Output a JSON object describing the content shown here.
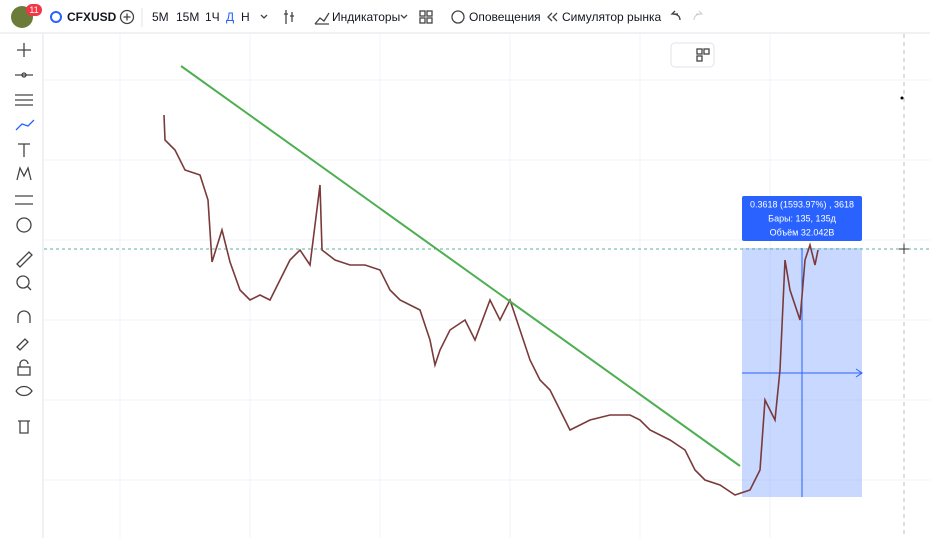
{
  "toolbar": {
    "badge": "11",
    "symbol": "CFXUSD",
    "intervals": [
      "5М",
      "15М",
      "1Ч",
      "Д",
      "Н"
    ],
    "indicators": "Индикаторы",
    "alerts": "Оповещения",
    "simulator": "Симулятор рынка"
  },
  "measure": {
    "line1": "0.3618 (1593.97%) , 3618",
    "line2": "Бары: 135, 135д",
    "line3": "Объём 32.042B"
  }
}
